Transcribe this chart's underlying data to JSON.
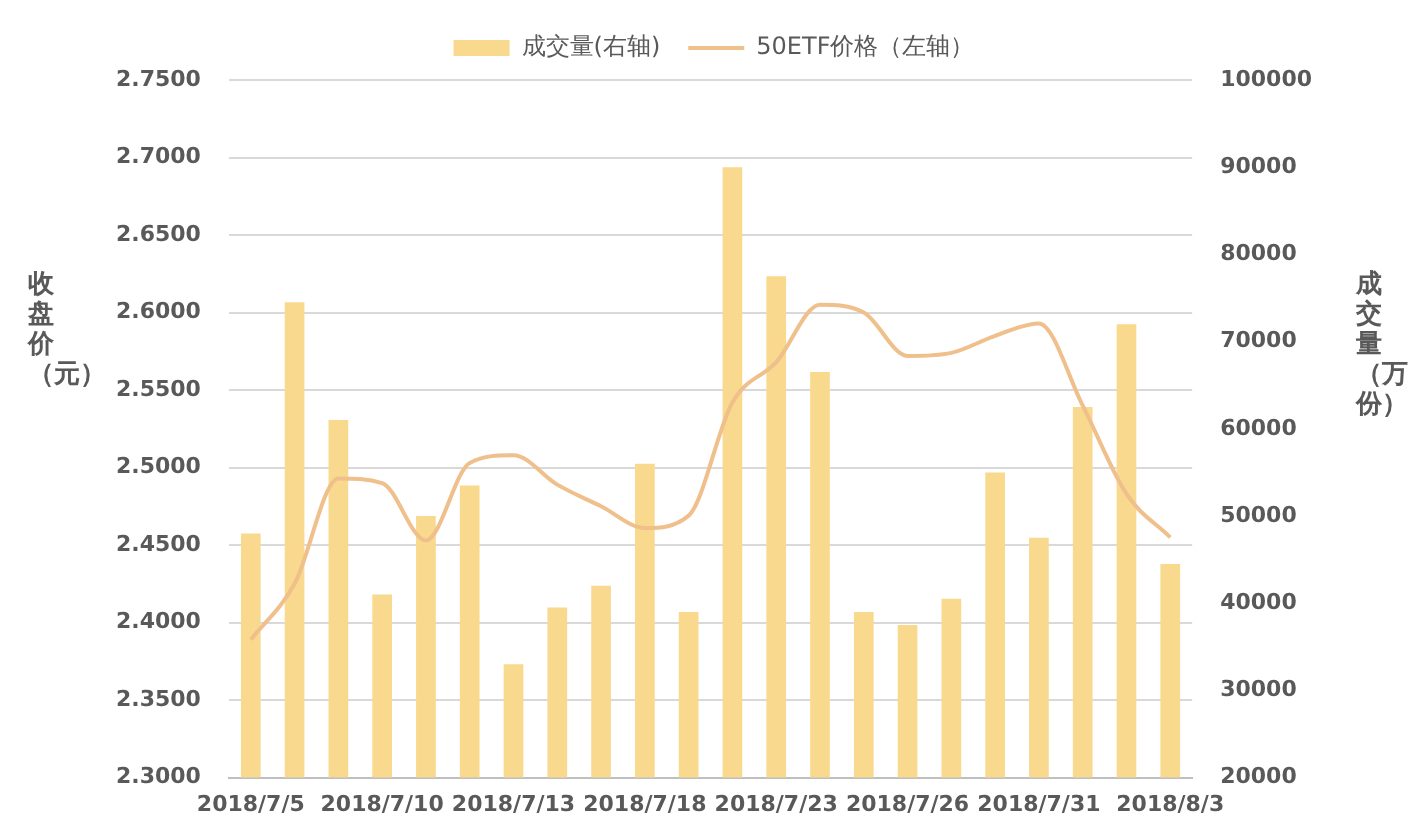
{
  "chart_data": {
    "type": "bar",
    "ylabel": "收盘价（元）",
    "y2label": "成交量（万份）",
    "categories": [
      "2018/7/5",
      null,
      null,
      "2018/7/10",
      null,
      null,
      "2018/7/13",
      null,
      null,
      "2018/7/18",
      null,
      null,
      "2018/7/23",
      null,
      null,
      "2018/7/26",
      null,
      null,
      "2018/7/31",
      null,
      null,
      "2018/8/3"
    ],
    "series": [
      {
        "name": "成交量(右轴)",
        "axis": "y2",
        "color": "#f9d98e",
        "values": [
          48000,
          74500,
          61000,
          41000,
          50000,
          53500,
          33000,
          39500,
          42000,
          56000,
          39000,
          90000,
          77500,
          66500,
          39000,
          37500,
          40500,
          55000,
          47500,
          62500,
          72000,
          44500
        ]
      },
      {
        "name": "50ETF价格（左轴）",
        "type": "line",
        "axis": "y",
        "color": "#efbf8c",
        "values": [
          2.389,
          2.425,
          2.493,
          2.49,
          2.453,
          2.503,
          2.508,
          2.489,
          2.475,
          2.461,
          2.469,
          2.542,
          2.568,
          2.605,
          2.6,
          2.572,
          2.574,
          2.585,
          2.593,
          2.54,
          2.483,
          2.455
        ]
      }
    ],
    "ylim": [
      2.3,
      2.75
    ],
    "yticks": [
      {
        "value": 2.3,
        "label": "2.3000"
      },
      {
        "value": 2.35,
        "label": "2.3500"
      },
      {
        "value": 2.4,
        "label": "2.4000"
      },
      {
        "value": 2.45,
        "label": "2.4500"
      },
      {
        "value": 2.5,
        "label": "2.5000"
      },
      {
        "value": 2.55,
        "label": "2.5500"
      },
      {
        "value": 2.6,
        "label": "2.6000"
      },
      {
        "value": 2.65,
        "label": "2.6500"
      },
      {
        "value": 2.7,
        "label": "2.7000"
      },
      {
        "value": 2.75,
        "label": "2.7500"
      }
    ],
    "y2lim": [
      20000,
      100000
    ],
    "y2ticks": [
      20000,
      30000,
      40000,
      50000,
      60000,
      70000,
      80000,
      90000,
      100000
    ],
    "grid": "y",
    "legend": "top",
    "marker": "none",
    "line_style": "solid"
  }
}
